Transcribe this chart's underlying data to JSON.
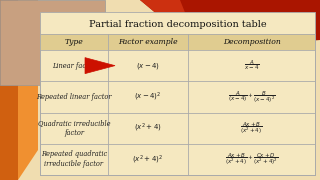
{
  "title": "Partial fraction decomposition table",
  "bg_color": "#f0ddb0",
  "table_bg": "#f5e8c0",
  "header_bg": "#e0cc90",
  "table_border": "#aaaaaa",
  "title_color": "#111111",
  "headers": [
    "Type",
    "Factor example",
    "Decomposition"
  ],
  "rows": [
    {
      "type": "Linear factor",
      "factor": "$(x - 4)$",
      "decomp": "$\\dfrac{A}{x-4}$"
    },
    {
      "type": "Repeated linear factor",
      "factor": "$(x - 4)^2$",
      "decomp": "$\\dfrac{A}{(x-4)} + \\dfrac{B}{(x-4)^2}$"
    },
    {
      "type": "Quadratic irreducible\nfactor",
      "factor": "$(x^2 + 4)$",
      "decomp": "$\\dfrac{Ax+B}{(x^2+4)}$"
    },
    {
      "type": "Repeated quadratic\nirreducible factor",
      "factor": "$(x^2 + 4)^2$",
      "decomp": "$\\dfrac{Ax+B}{(x^2+4)} + \\dfrac{Cx+D}{(x^2+4)^2}$"
    }
  ],
  "arrow_color": "#cc1100",
  "orange_dark": "#d06010",
  "orange_light": "#f09030",
  "red_dark": "#aa1500",
  "red_mid": "#cc3010",
  "photo_bg": "#c8a080"
}
